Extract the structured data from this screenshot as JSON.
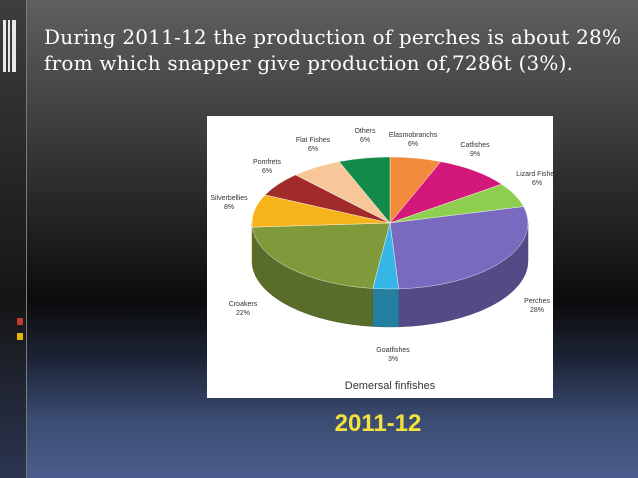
{
  "slide": {
    "title_line1": "During 2011-12 the production of perches is about 28%",
    "title_line2": "from which snapper give production of,7286t (3%).",
    "caption": "2011-12"
  },
  "colors": {
    "caption": "#f4e23c",
    "marker_red": "#c0392b",
    "marker_yellow": "#e6b800",
    "title_text": "#ffffff"
  },
  "chart_data": {
    "type": "pie",
    "title": "Demersal finfishes",
    "three_d": true,
    "slices": [
      {
        "label": "Elasmobranchs",
        "value": 6,
        "value_label": "6%",
        "color": "#f28c3c"
      },
      {
        "label": "Catfishes",
        "value": 9,
        "value_label": "9%",
        "color": "#d4177a"
      },
      {
        "label": "Lizard Fishes",
        "value": 6,
        "value_label": "6%",
        "color": "#8fcf4f"
      },
      {
        "label": "Perches",
        "value": 28,
        "value_label": "28%",
        "color": "#7a6abf"
      },
      {
        "label": "Goatfishes",
        "value": 3,
        "value_label": "3%",
        "color": "#35b6e6"
      },
      {
        "label": "Croakers",
        "value": 22,
        "value_label": "22%",
        "color": "#7f9a3b"
      },
      {
        "label": "Silverbellies",
        "value": 8,
        "value_label": "8%",
        "color": "#f6b31a"
      },
      {
        "label": "Pomfrets",
        "value": 6,
        "value_label": "6%",
        "color": "#a12a2a"
      },
      {
        "label": "Flat Fishes",
        "value": 6,
        "value_label": "6%",
        "color": "#f7c79a"
      },
      {
        "label": "Others",
        "value": 6,
        "value_label": "6%",
        "color": "#138a4a"
      }
    ]
  }
}
